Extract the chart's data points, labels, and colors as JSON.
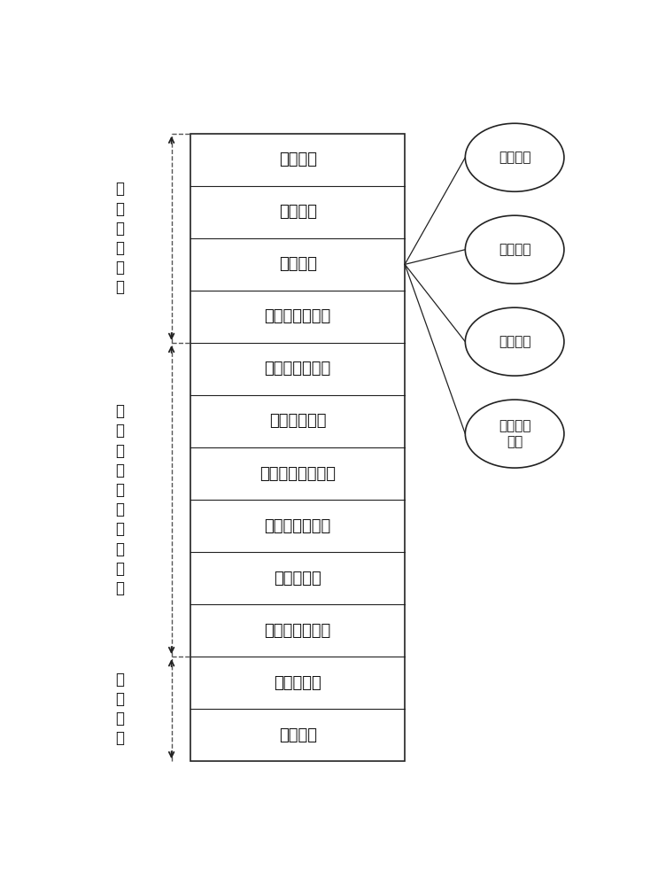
{
  "rows": [
    "母线故障",
    "主变故障",
    "线路故障",
    "上一级线路故障",
    "主保护正确动作",
    "主保护拒动作",
    "后备保护正确动作",
    "后备保护拒动作",
    "断路器跳闸",
    "断路器正确跳闸",
    "断路器拒动",
    "终止结点"
  ],
  "groups": [
    {
      "label": "设\n备\n故\n障\n规\n则",
      "start": 0,
      "end": 3
    },
    {
      "label": "断\n路\n器\n和\n保\n护\n动\n作\n规\n则",
      "start": 4,
      "end": 9
    },
    {
      "label": "终\n止\n规\n则",
      "start": 10,
      "end": 11
    }
  ],
  "circles": [
    "设备类型",
    "电压等级",
    "接线方式",
    "是否终止\n结点"
  ],
  "fan_from_row": 2,
  "bg_color": "#ffffff",
  "line_color": "#222222",
  "text_color": "#111111",
  "dashed_color": "#555555",
  "circle_color": "#ffffff",
  "circle_edge": "#222222"
}
